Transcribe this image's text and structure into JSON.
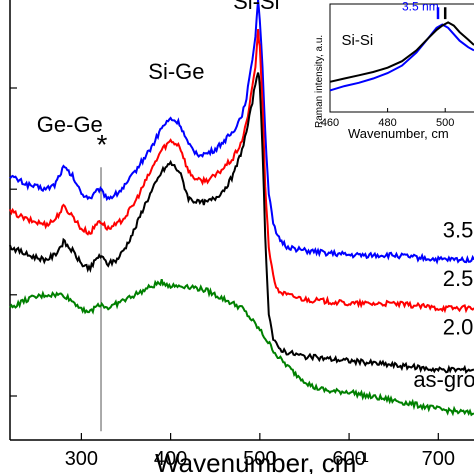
{
  "chart_data": [
    {
      "type": "line",
      "title": "",
      "xlabel_main": "Wavenumber, cm",
      "xlabel_sup": "-1",
      "ylabel": "",
      "xlim": [
        220,
        740
      ],
      "ylim": [
        0,
        1
      ],
      "x_ticks": [
        300,
        400,
        500,
        600,
        700
      ],
      "x_tick_labels": [
        "300",
        "400",
        "500",
        "600",
        "700"
      ],
      "y_ticks": [
        0.1,
        0.33,
        0.57,
        0.8
      ],
      "grid": false,
      "legend": "none",
      "annotations": [
        {
          "text": "Ge-Ge",
          "x": 250,
          "y": 0.7
        },
        {
          "text": "*",
          "x": 323,
          "y": 0.65
        },
        {
          "text": "Si-Ge",
          "x": 375,
          "y": 0.82
        },
        {
          "text": "Si-Si",
          "x": 470,
          "y": 0.98
        }
      ],
      "reference_line": {
        "x": 322,
        "y_from": 0.02,
        "y_to": 0.62
      },
      "series": [
        {
          "name": "3.5",
          "color": "#0000ff",
          "x": [
            220,
            240,
            260,
            270,
            280,
            290,
            300,
            310,
            320,
            330,
            340,
            350,
            360,
            370,
            380,
            390,
            400,
            410,
            420,
            430,
            440,
            450,
            460,
            470,
            480,
            485,
            490,
            495,
            498,
            500,
            503,
            506,
            510,
            515,
            520,
            530,
            550,
            600,
            650,
            700,
            740
          ],
          "y": [
            0.6,
            0.58,
            0.57,
            0.58,
            0.62,
            0.6,
            0.56,
            0.55,
            0.57,
            0.55,
            0.56,
            0.58,
            0.61,
            0.64,
            0.67,
            0.71,
            0.73,
            0.72,
            0.67,
            0.65,
            0.65,
            0.66,
            0.68,
            0.7,
            0.74,
            0.78,
            0.84,
            0.92,
            1.0,
            0.96,
            0.85,
            0.7,
            0.56,
            0.49,
            0.46,
            0.44,
            0.43,
            0.42,
            0.42,
            0.41,
            0.41
          ]
        },
        {
          "name": "2.5",
          "color": "#ff0000",
          "x": [
            220,
            240,
            260,
            270,
            280,
            290,
            300,
            310,
            320,
            330,
            340,
            350,
            360,
            370,
            380,
            390,
            400,
            410,
            420,
            430,
            440,
            450,
            460,
            470,
            480,
            485,
            490,
            495,
            498,
            500,
            503,
            506,
            510,
            515,
            520,
            530,
            550,
            600,
            650,
            700,
            740
          ],
          "y": [
            0.52,
            0.5,
            0.49,
            0.5,
            0.53,
            0.51,
            0.48,
            0.47,
            0.5,
            0.48,
            0.49,
            0.51,
            0.54,
            0.58,
            0.62,
            0.66,
            0.68,
            0.67,
            0.61,
            0.59,
            0.59,
            0.6,
            0.62,
            0.64,
            0.68,
            0.72,
            0.78,
            0.85,
            0.93,
            0.89,
            0.76,
            0.58,
            0.44,
            0.37,
            0.34,
            0.33,
            0.32,
            0.31,
            0.31,
            0.3,
            0.3
          ]
        },
        {
          "name": "2.0",
          "color": "#000000",
          "x": [
            220,
            240,
            260,
            270,
            280,
            290,
            300,
            310,
            320,
            330,
            340,
            350,
            360,
            370,
            380,
            390,
            400,
            410,
            420,
            430,
            440,
            450,
            460,
            470,
            480,
            485,
            490,
            495,
            498,
            500,
            503,
            506,
            510,
            515,
            520,
            530,
            550,
            600,
            650,
            700,
            740
          ],
          "y": [
            0.44,
            0.42,
            0.41,
            0.42,
            0.45,
            0.43,
            0.4,
            0.39,
            0.42,
            0.4,
            0.41,
            0.44,
            0.48,
            0.53,
            0.57,
            0.61,
            0.63,
            0.61,
            0.55,
            0.54,
            0.54,
            0.55,
            0.57,
            0.6,
            0.66,
            0.7,
            0.75,
            0.81,
            0.84,
            0.8,
            0.66,
            0.46,
            0.29,
            0.23,
            0.21,
            0.2,
            0.19,
            0.18,
            0.17,
            0.16,
            0.16
          ]
        },
        {
          "name": "as-grown",
          "color": "#008000",
          "x": [
            220,
            240,
            260,
            280,
            300,
            310,
            320,
            330,
            340,
            360,
            380,
            390,
            400,
            420,
            440,
            460,
            480,
            500,
            520,
            540,
            560,
            580,
            600,
            620,
            650,
            700,
            740
          ],
          "y": [
            0.3,
            0.32,
            0.33,
            0.33,
            0.3,
            0.29,
            0.31,
            0.3,
            0.31,
            0.33,
            0.35,
            0.36,
            0.35,
            0.35,
            0.34,
            0.32,
            0.3,
            0.25,
            0.19,
            0.15,
            0.12,
            0.11,
            0.11,
            0.1,
            0.09,
            0.07,
            0.06
          ]
        }
      ],
      "curve_labels": [
        {
          "text": "3.5",
          "x": 705,
          "y": 0.46
        },
        {
          "text": "2.5",
          "x": 705,
          "y": 0.35
        },
        {
          "text": "2.0",
          "x": 705,
          "y": 0.24
        },
        {
          "text": "as-grown",
          "x": 672,
          "y": 0.12
        }
      ]
    },
    {
      "type": "line",
      "title": "",
      "xlabel": "Wavenumber, cm",
      "ylabel": "Raman intensity, a.u.",
      "xlim": [
        460,
        510
      ],
      "ylim": [
        0,
        1
      ],
      "x_ticks": [
        460,
        480,
        500
      ],
      "x_tick_labels": [
        "460",
        "480",
        "500"
      ],
      "grid": false,
      "annotations": [
        {
          "text": "Si-Si",
          "x": 464,
          "y": 0.62
        },
        {
          "text": "3.5 nm",
          "x": 485,
          "y": 0.94,
          "color": "#0000ff"
        }
      ],
      "markers": [
        {
          "x": 497.5,
          "color": "#0000ff"
        },
        {
          "x": 500,
          "color": "#000000"
        }
      ],
      "series": [
        {
          "name": "3.5 nm",
          "color": "#0000ff",
          "x": [
            460,
            465,
            470,
            475,
            480,
            485,
            490,
            494,
            497,
            499,
            501,
            503,
            505,
            508,
            510
          ],
          "y": [
            0.2,
            0.24,
            0.27,
            0.31,
            0.36,
            0.43,
            0.55,
            0.68,
            0.78,
            0.81,
            0.78,
            0.72,
            0.66,
            0.6,
            0.57
          ]
        },
        {
          "name": "",
          "color": "#000000",
          "x": [
            460,
            465,
            470,
            475,
            480,
            485,
            490,
            494,
            497,
            499,
            501,
            503,
            505,
            508,
            510
          ],
          "y": [
            0.28,
            0.31,
            0.34,
            0.37,
            0.41,
            0.47,
            0.57,
            0.68,
            0.76,
            0.8,
            0.83,
            0.8,
            0.74,
            0.67,
            0.62
          ]
        }
      ]
    }
  ]
}
